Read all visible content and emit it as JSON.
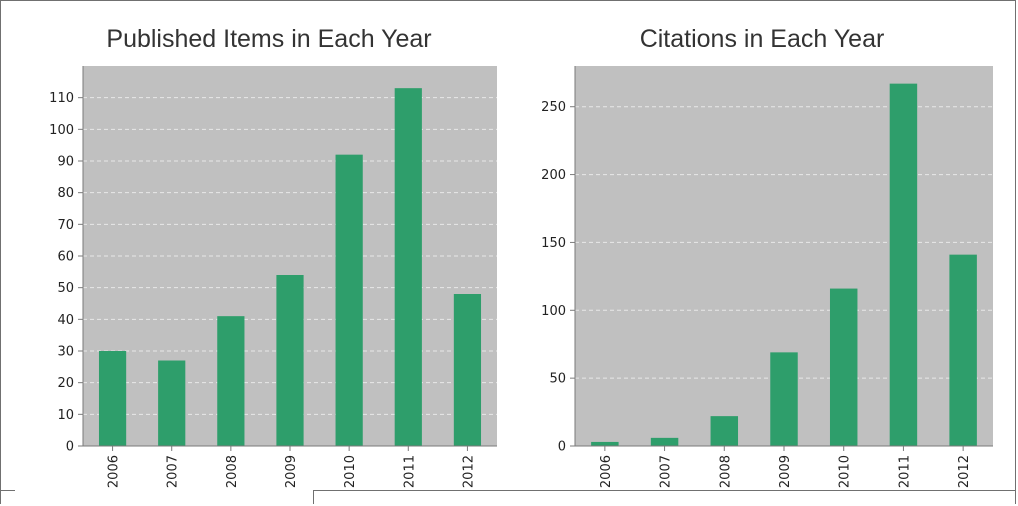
{
  "colors": {
    "bar": "#2e9e6b",
    "plot_background": "#c0c0c0",
    "gridline": "#e8e8e8",
    "axis": "#7a7a7a"
  },
  "chart_data": [
    {
      "type": "bar",
      "title": "Published Items in Each Year",
      "categories": [
        "2006",
        "2007",
        "2008",
        "2009",
        "2010",
        "2011",
        "2012"
      ],
      "values": [
        30,
        27,
        41,
        54,
        92,
        113,
        48
      ],
      "ylim": [
        0,
        120
      ],
      "yticks": [
        0,
        10,
        20,
        30,
        40,
        50,
        60,
        70,
        80,
        90,
        100,
        110
      ],
      "grid": true,
      "legend": "none"
    },
    {
      "type": "bar",
      "title": "Citations in Each Year",
      "categories": [
        "2006",
        "2007",
        "2008",
        "2009",
        "2010",
        "2011",
        "2012"
      ],
      "values": [
        3,
        6,
        22,
        69,
        116,
        267,
        141
      ],
      "ylim": [
        0,
        280
      ],
      "yticks": [
        0,
        50,
        100,
        150,
        200,
        250
      ],
      "grid": true,
      "legend": "none"
    }
  ]
}
